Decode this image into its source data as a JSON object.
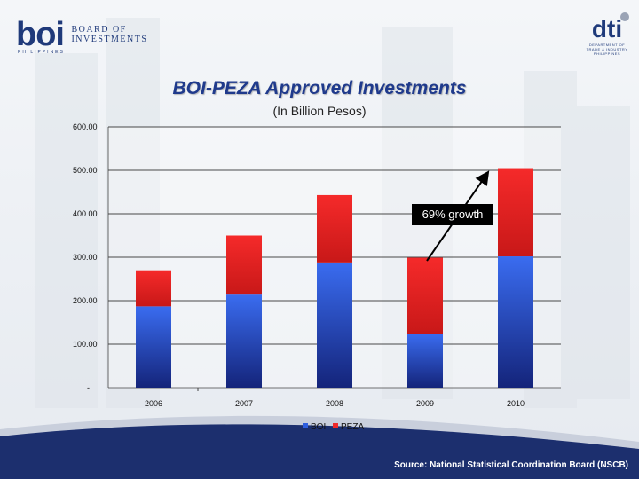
{
  "logos": {
    "boi_mark": "boi",
    "boi_line1": "BOARD OF",
    "boi_line2": "INVESTMENTS",
    "boi_sub": "PHILIPPINES",
    "dti_mark": "dti",
    "dti_lines": [
      "DEPARTMENT OF",
      "TRADE & INDUSTRY",
      "PHILIPPINES"
    ]
  },
  "chart_data": {
    "type": "bar",
    "stacked": true,
    "title": "BOI-PEZA Approved Investments",
    "subtitle": "(In Billion Pesos)",
    "categories": [
      "2006",
      "2007",
      "2008",
      "2009",
      "2010"
    ],
    "series": [
      {
        "name": "BOI",
        "values": [
          187,
          214,
          288,
          124,
          302
        ],
        "color": "#2f5fe0"
      },
      {
        "name": "PEZA",
        "values": [
          83,
          136,
          155,
          175,
          203
        ],
        "color": "#f02a2a"
      }
    ],
    "ylim": [
      0,
      600
    ],
    "yticks": [
      "-",
      "100.00",
      "200.00",
      "300.00",
      "400.00",
      "500.00",
      "600.00"
    ],
    "grid": true,
    "legend_position": "bottom",
    "annotation": "69% growth"
  },
  "footer": {
    "source": "Source: National Statistical Coordination Board (NSCB)"
  },
  "colors": {
    "title": "#1f3a8c",
    "band": "#1c2f6e"
  }
}
